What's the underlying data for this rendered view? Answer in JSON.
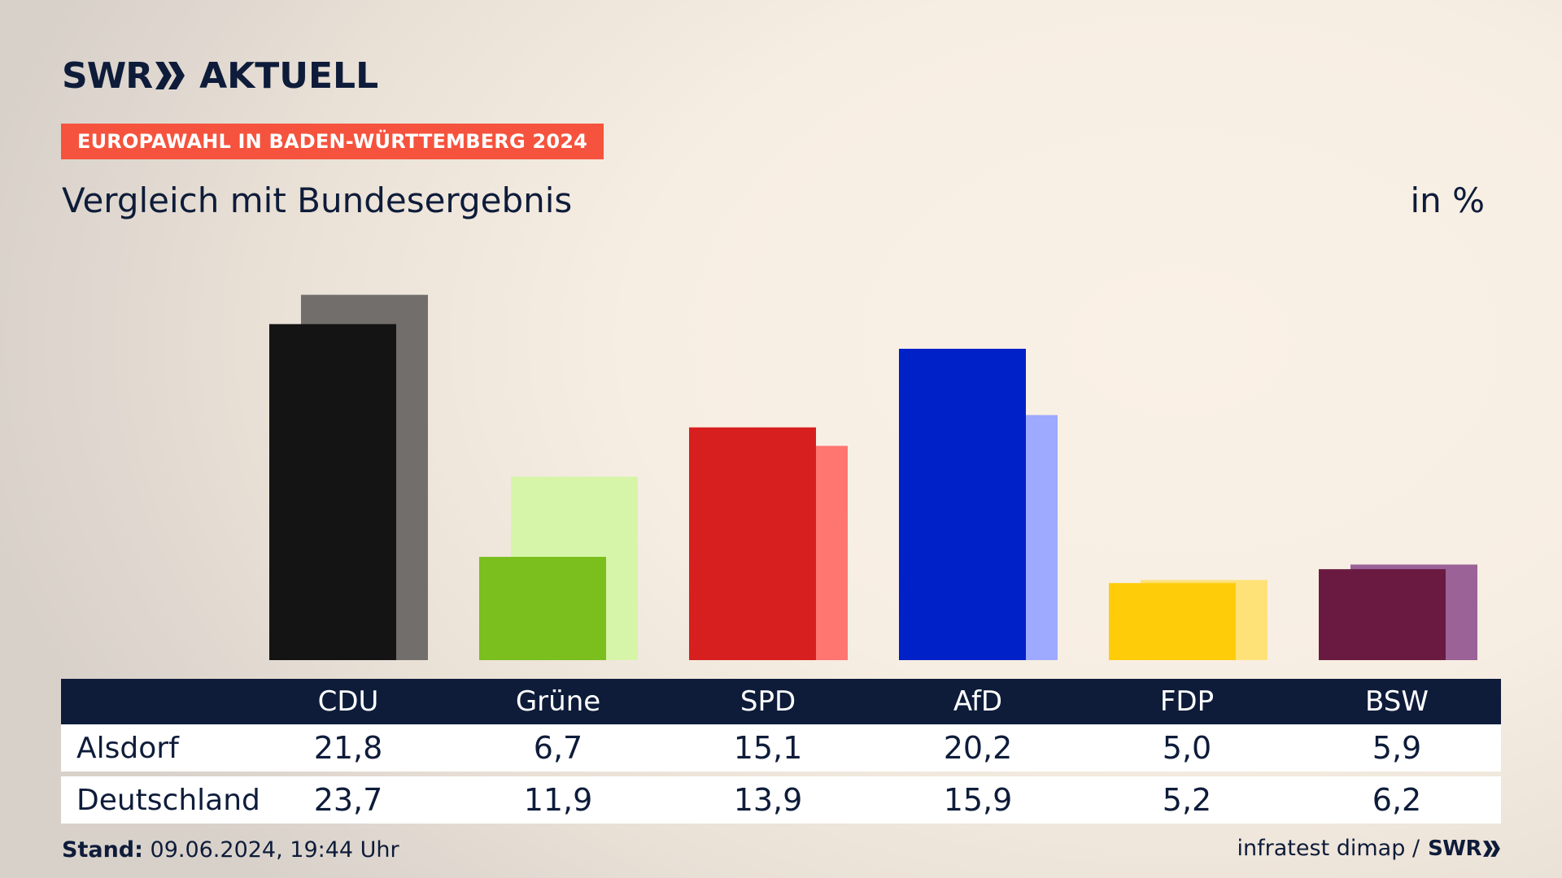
{
  "header": {
    "logo_left": "SWR",
    "logo_right": "AKTUELL",
    "badge": "EUROPAWAHL IN BADEN-WÜRTTEMBERG 2024",
    "subtitle": "Vergleich mit Bundesergebnis",
    "unit": "in %"
  },
  "chart_data": {
    "type": "bar",
    "categories": [
      "CDU",
      "Grüne",
      "SPD",
      "AfD",
      "FDP",
      "BSW"
    ],
    "series": [
      {
        "name": "Alsdorf",
        "values": [
          21.8,
          6.7,
          15.1,
          20.2,
          5.0,
          5.9
        ]
      },
      {
        "name": "Deutschland",
        "values": [
          23.7,
          11.9,
          13.9,
          15.9,
          5.2,
          6.2
        ]
      }
    ],
    "display": {
      "Alsdorf": [
        "21,8",
        "6,7",
        "15,1",
        "20,2",
        "5,0",
        "5,9"
      ],
      "Deutschland": [
        "23,7",
        "11,9",
        "13,9",
        "15,9",
        "5,2",
        "6,2"
      ]
    },
    "colors": {
      "primary": [
        "#141414",
        "#7abf1d",
        "#d81f1f",
        "#0020c8",
        "#ffcc0a",
        "#6a1a40"
      ],
      "secondary": [
        "#716e6b",
        "#d6f5a8",
        "#ff7570",
        "#9eaaff",
        "#ffe277",
        "#9b6297"
      ]
    },
    "ylim": [
      0,
      25
    ]
  },
  "footer": {
    "stand_label": "Stand:",
    "stand_value": "09.06.2024, 19:44 Uhr",
    "source": "infratest dimap /",
    "source_logo": "SWR"
  }
}
